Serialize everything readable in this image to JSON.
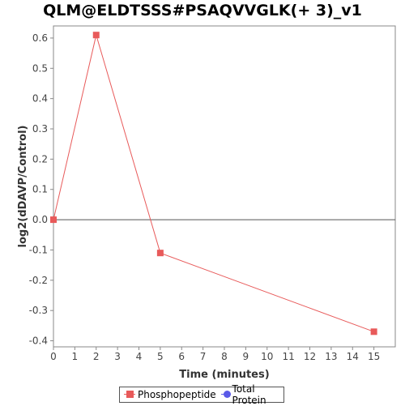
{
  "chart_data": {
    "type": "line",
    "title": "QLM@ELDTSSS#PSAQVVGLK(+ 3)_v1",
    "xlabel": "Time (minutes)",
    "ylabel": "log2(dDAVP/Control)",
    "xlim": [
      0,
      16
    ],
    "ylim": [
      -0.42,
      0.64
    ],
    "x_ticks": [
      0,
      1,
      2,
      3,
      4,
      5,
      6,
      7,
      8,
      9,
      10,
      11,
      12,
      13,
      14,
      15
    ],
    "y_ticks": [
      -0.4,
      -0.3,
      -0.2,
      -0.1,
      0.0,
      0.1,
      0.2,
      0.3,
      0.4,
      0.5,
      0.6
    ],
    "y_tick_labels": [
      "-0.4",
      "-0.3",
      "-0.2",
      "-0.1",
      "0.0",
      "0.1",
      "0.2",
      "0.3",
      "0.4",
      "0.5",
      "0.6"
    ],
    "grid": false,
    "legend_position": "bottom",
    "reference_line_y": 0,
    "series": [
      {
        "name": "Phosphopeptide",
        "color": "#e85a5a",
        "marker": "square",
        "x": [
          0,
          2,
          5,
          15
        ],
        "y": [
          0.0,
          0.61,
          -0.11,
          -0.37
        ]
      },
      {
        "name": "Total Protein",
        "color": "#5a5ae8",
        "marker": "circle",
        "x": [],
        "y": []
      }
    ]
  }
}
